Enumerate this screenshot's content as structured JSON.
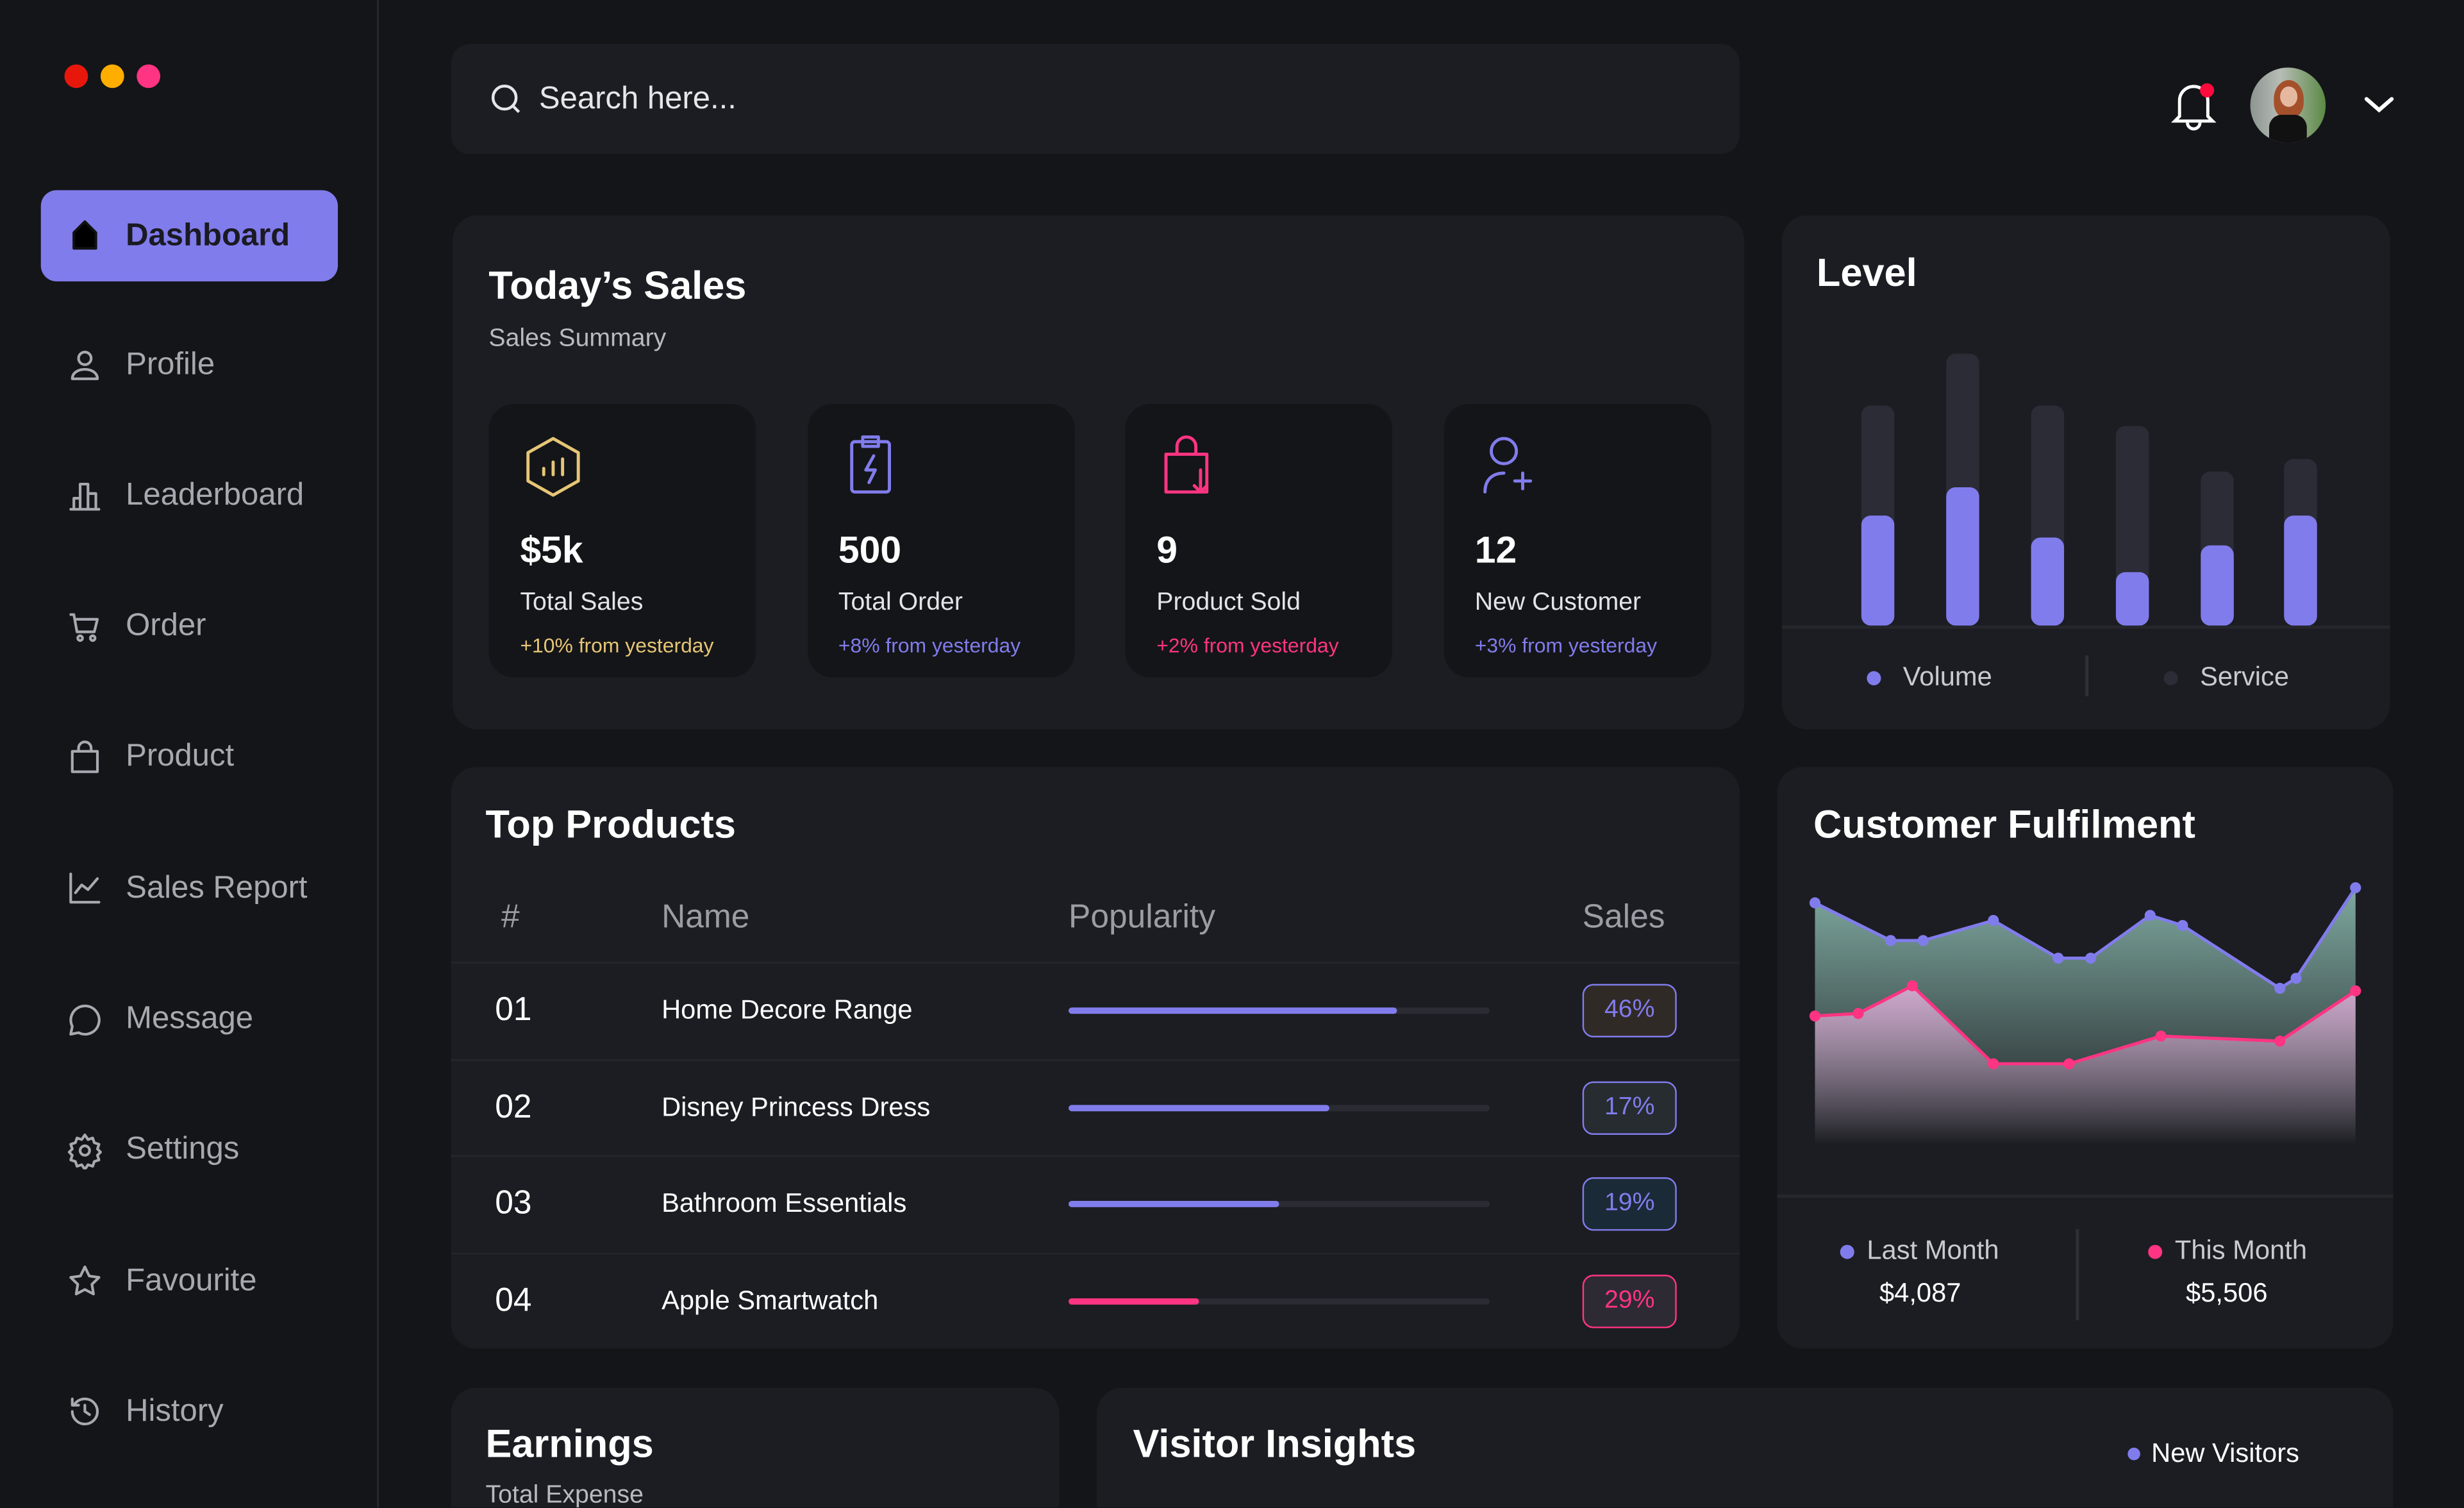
{
  "window_dots": [
    "#e8170c",
    "#ffae00",
    "#ff3482"
  ],
  "sidebar": {
    "items": [
      {
        "label": "Dashboard",
        "icon": "home-icon",
        "active": true
      },
      {
        "label": "Profile",
        "icon": "user-icon"
      },
      {
        "label": "Leaderboard",
        "icon": "leaderboard-icon"
      },
      {
        "label": "Order",
        "icon": "cart-icon"
      },
      {
        "label": "Product",
        "icon": "bag-icon"
      },
      {
        "label": "Sales Report",
        "icon": "line-chart-icon"
      },
      {
        "label": "Message",
        "icon": "message-icon"
      },
      {
        "label": "Settings",
        "icon": "gear-icon"
      },
      {
        "label": "Favourite",
        "icon": "star-icon"
      },
      {
        "label": "History",
        "icon": "history-icon"
      }
    ]
  },
  "header": {
    "search_placeholder": "Search here...",
    "notification_badge_color": "#ff0a3c"
  },
  "colors": {
    "accent": "#817cec",
    "pink": "#ff3482",
    "gold": "#e6c676",
    "bg": "#141518",
    "panel": "#1c1d22"
  },
  "todays_sales": {
    "title": "Today’s Sales",
    "subtitle": "Sales Summary",
    "cards": [
      {
        "value": "$5k",
        "label": "Total Sales",
        "change": "+10% from yesterday",
        "color": "#e6c676",
        "icon": "hexagon-chart-icon"
      },
      {
        "value": "500",
        "label": "Total Order",
        "change": "+8% from yesterday",
        "color": "#817cec",
        "icon": "clipboard-bolt-icon"
      },
      {
        "value": "9",
        "label": "Product Sold",
        "change": "+2% from yesterday",
        "color": "#ff3482",
        "icon": "bag-download-icon"
      },
      {
        "value": "12",
        "label": "New Customer",
        "change": "+3% from yesterday",
        "color": "#817cec",
        "icon": "user-add-icon"
      }
    ]
  },
  "top_products": {
    "title": "Top Products",
    "columns": [
      "#",
      "Name",
      "Popularity",
      "Sales"
    ],
    "rows": [
      {
        "num": "01",
        "name": "Home Decore Range",
        "popularity": 78,
        "sales": "46%",
        "bar": "#817cec",
        "badge_border": "#817cec",
        "badge_text": "#817cec",
        "badge_bg": "#302a26"
      },
      {
        "num": "02",
        "name": "Disney Princess Dress",
        "popularity": 62,
        "sales": "17%",
        "bar": "#817cec",
        "badge_border": "#817cec",
        "badge_text": "#817cec",
        "badge_bg": "#262c30"
      },
      {
        "num": "03",
        "name": "Bathroom Essentials",
        "popularity": 50,
        "sales": "19%",
        "bar": "#817cec",
        "badge_border": "#817cec",
        "badge_text": "#817cec",
        "badge_bg": "#1b2a37"
      },
      {
        "num": "04",
        "name": "Apple Smartwatch",
        "popularity": 31,
        "sales": "29%",
        "bar": "#ff3482",
        "badge_border": "#ff3482",
        "badge_text": "#ff3482",
        "badge_bg": "#2e2a33"
      }
    ]
  },
  "chart_data": [
    {
      "type": "bar",
      "title": "Level",
      "series": [
        {
          "name": "Volume",
          "color": "#817cec",
          "values": [
            70,
            88,
            56,
            34,
            51,
            70
          ]
        },
        {
          "name": "Service",
          "color": "#2c2c37",
          "values": [
            140,
            173,
            140,
            127,
            98,
            106
          ]
        }
      ],
      "legend": "bottom",
      "grid": false,
      "stacked_overlay": true
    },
    {
      "type": "area",
      "title": "Customer Fulfilment",
      "grid": false,
      "legend": "bottom",
      "series": [
        {
          "name": "Last Month",
          "total": "$4,087",
          "color": "#817cec",
          "fill": "#8fc1b5",
          "points": [
            [
              0,
              91
            ],
            [
              14,
              76
            ],
            [
              20,
              76
            ],
            [
              33,
              84
            ],
            [
              45,
              69
            ],
            [
              51,
              69
            ],
            [
              62,
              86
            ],
            [
              68,
              82
            ],
            [
              86,
              57
            ],
            [
              89,
              61
            ],
            [
              100,
              97
            ]
          ]
        },
        {
          "name": "This Month",
          "total": "$5,506",
          "color": "#ff3482",
          "fill": "#e4b0dc",
          "points": [
            [
              0,
              46
            ],
            [
              8,
              47
            ],
            [
              18,
              58
            ],
            [
              33,
              27
            ],
            [
              47,
              27
            ],
            [
              64,
              38
            ],
            [
              86,
              36
            ],
            [
              100,
              56
            ]
          ]
        }
      ]
    }
  ],
  "earnings": {
    "title": "Earnings",
    "subtitle": "Total Expense"
  },
  "visitor_insights": {
    "title": "Visitor Insights",
    "legend": "New Visitors"
  }
}
